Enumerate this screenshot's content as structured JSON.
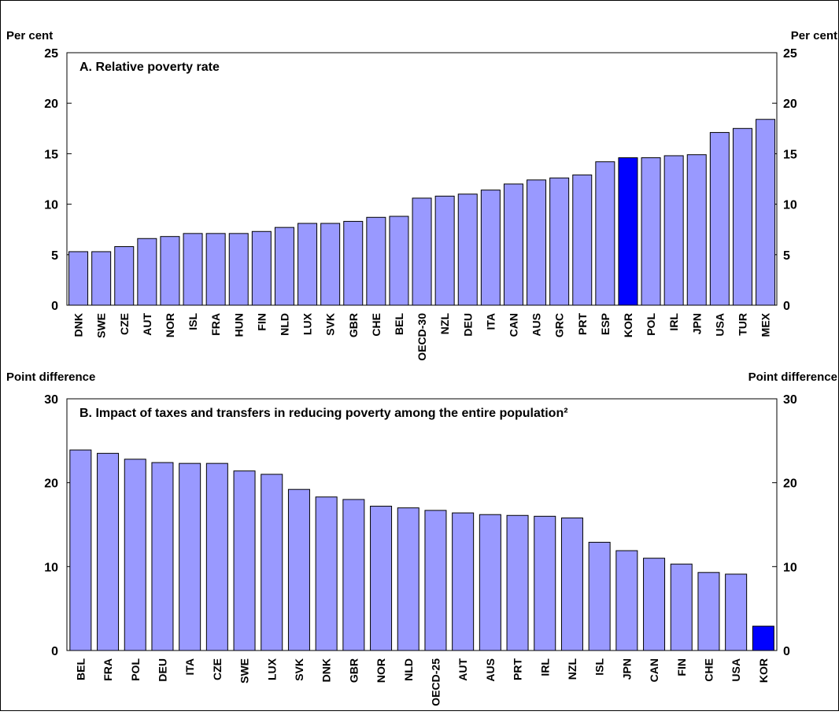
{
  "colors": {
    "bar": "#9999ff",
    "highlight": "#0000ff",
    "axis": "#000000"
  },
  "chart_data": [
    {
      "type": "bar",
      "title": "A. Relative poverty rate",
      "ylabel_left": "Per cent",
      "ylabel_right": "Per cent",
      "ylim": [
        0,
        25
      ],
      "yticks": [
        0,
        5,
        10,
        15,
        20,
        25
      ],
      "highlight": "KOR",
      "categories": [
        "DNK",
        "SWE",
        "CZE",
        "AUT",
        "NOR",
        "ISL",
        "FRA",
        "HUN",
        "FIN",
        "NLD",
        "LUX",
        "SVK",
        "GBR",
        "CHE",
        "BEL",
        "OECD-30",
        "NZL",
        "DEU",
        "ITA",
        "CAN",
        "AUS",
        "GRC",
        "PRT",
        "ESP",
        "KOR",
        "POL",
        "IRL",
        "JPN",
        "USA",
        "TUR",
        "MEX"
      ],
      "values": [
        5.3,
        5.3,
        5.8,
        6.6,
        6.8,
        7.1,
        7.1,
        7.1,
        7.3,
        7.7,
        8.1,
        8.1,
        8.3,
        8.7,
        8.8,
        10.6,
        10.8,
        11.0,
        11.4,
        12.0,
        12.4,
        12.6,
        12.9,
        14.2,
        14.6,
        14.6,
        14.8,
        14.9,
        17.1,
        17.5,
        18.4
      ]
    },
    {
      "type": "bar",
      "title": "B. Impact of taxes and transfers in reducing poverty among the entire population²",
      "ylabel_left": "Point difference",
      "ylabel_right": "Point difference",
      "ylim": [
        0,
        30
      ],
      "yticks": [
        0,
        10,
        20,
        30
      ],
      "highlight": "KOR",
      "categories": [
        "BEL",
        "FRA",
        "POL",
        "DEU",
        "ITA",
        "CZE",
        "SWE",
        "LUX",
        "SVK",
        "DNK",
        "GBR",
        "NOR",
        "NLD",
        "OECD-25",
        "AUT",
        "AUS",
        "PRT",
        "IRL",
        "NZL",
        "ISL",
        "JPN",
        "CAN",
        "FIN",
        "CHE",
        "USA",
        "KOR"
      ],
      "values": [
        23.9,
        23.5,
        22.8,
        22.4,
        22.3,
        22.3,
        21.4,
        21.0,
        19.2,
        18.3,
        18.0,
        17.2,
        17.0,
        16.7,
        16.4,
        16.2,
        16.1,
        16.0,
        15.8,
        12.9,
        11.9,
        11.0,
        10.3,
        9.3,
        9.1,
        2.9
      ]
    }
  ]
}
